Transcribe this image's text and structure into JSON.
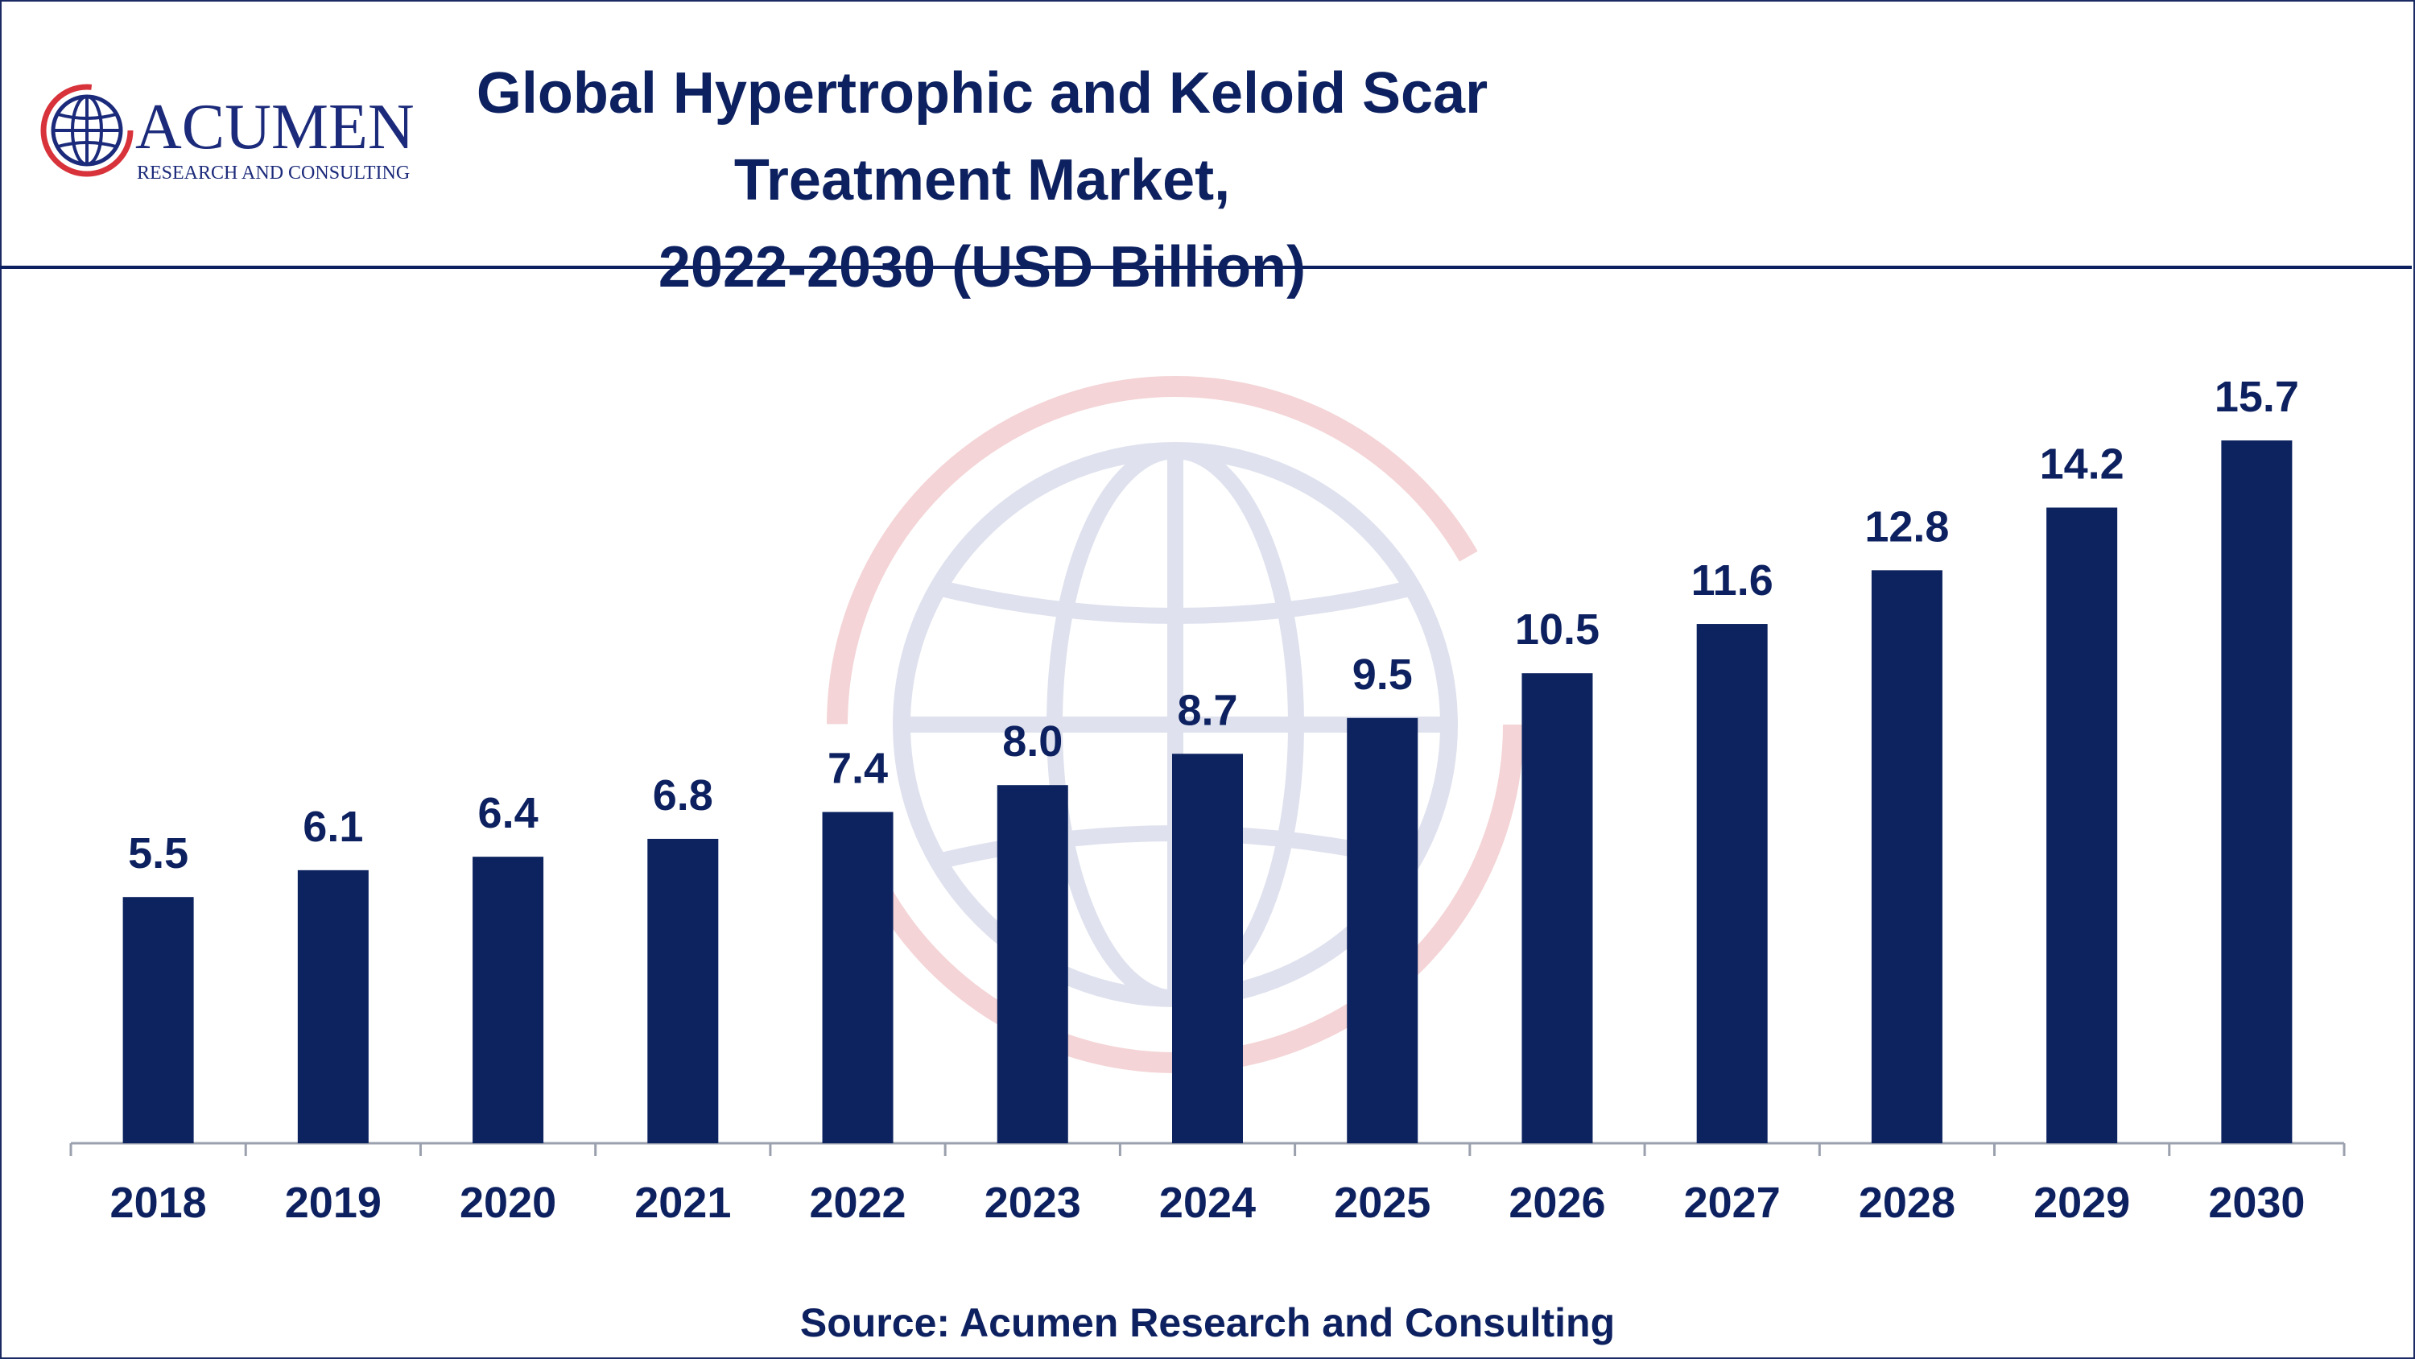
{
  "logo": {
    "name": "ACUMEN",
    "tagline": "RESEARCH AND CONSULTING"
  },
  "header": {
    "title_line1": "Global Hypertrophic and Keloid Scar Treatment Market,",
    "title_line2": "2022-2030 (USD Billion)"
  },
  "footer": {
    "source": "Source: Acumen Research and Consulting"
  },
  "colors": {
    "bar": "#0c2360",
    "text": "#0d2160",
    "brand_red": "#d8323a",
    "watermark_blue": "#c7cbe0",
    "watermark_red": "#f2c9cb"
  },
  "chart_data": {
    "type": "bar",
    "title": "Global Hypertrophic and Keloid Scar Treatment Market, 2022-2030 (USD Billion)",
    "xlabel": "",
    "ylabel": "",
    "categories": [
      "2018",
      "2019",
      "2020",
      "2021",
      "2022",
      "2023",
      "2024",
      "2025",
      "2026",
      "2027",
      "2028",
      "2029",
      "2030"
    ],
    "values": [
      5.5,
      6.1,
      6.4,
      6.8,
      7.4,
      8.0,
      8.7,
      9.5,
      10.5,
      11.6,
      12.8,
      14.2,
      15.7
    ],
    "value_labels": [
      "5.5",
      "6.1",
      "6.4",
      "6.8",
      "7.4",
      "8.0",
      "8.7",
      "9.5",
      "10.5",
      "11.6",
      "12.8",
      "14.2",
      "15.7"
    ],
    "ylim": [
      0,
      16
    ],
    "grid": false,
    "legend": "none"
  }
}
